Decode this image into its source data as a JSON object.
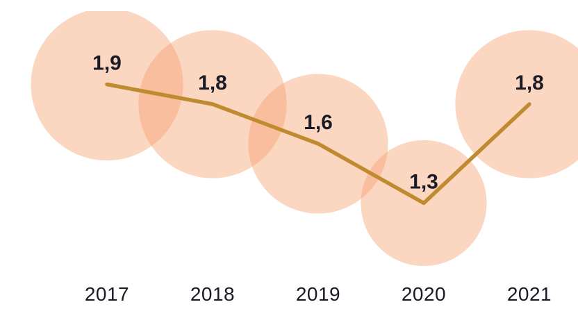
{
  "chart_data": {
    "type": "line",
    "subtype": "bubble-line",
    "title": "",
    "xlabel": "",
    "ylabel": "",
    "legend_position": "none",
    "grid": false,
    "categories": [
      "2017",
      "2018",
      "2019",
      "2020",
      "2021"
    ],
    "values": [
      1.9,
      1.8,
      1.6,
      1.3,
      1.8
    ],
    "value_labels": [
      "1,9",
      "1,8",
      "1,6",
      "1,3",
      "1,8"
    ],
    "ylim": [
      0,
      2.3
    ],
    "colors": {
      "background": "#FFFFFF",
      "bubble_fill": "#F69E6B",
      "bubble_opacity": 0.42,
      "line": "#C08B30",
      "value_label": "#1B1B26",
      "axis_label": "#1B1B26"
    },
    "layout": {
      "x_start": 114,
      "x_step": 152,
      "y_base": 647,
      "y_per_unit": 285,
      "bubble_r_per_sqrt_unit": 79.5,
      "value_label_offset_y": -21,
      "year_label_baseline_y": 417,
      "line_width": 5.5
    }
  }
}
